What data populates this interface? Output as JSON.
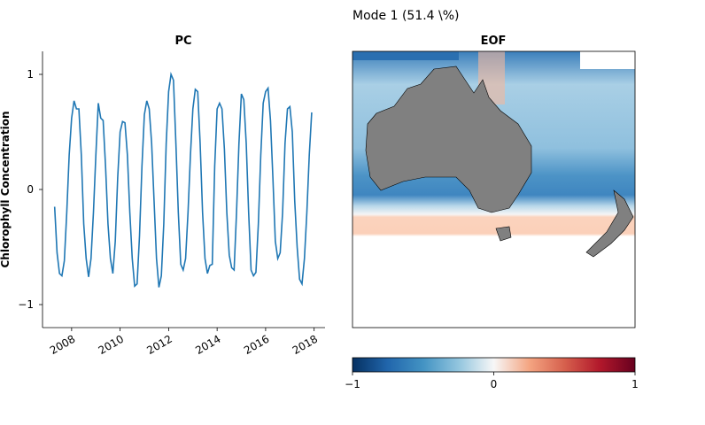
{
  "title": "Mode 1 (51.4 \\%)",
  "chart_data": [
    {
      "type": "line",
      "title": "PC",
      "y_label": "Chlorophyll Concentration",
      "x": [
        2007.3,
        2007.4,
        2007.5,
        2007.6,
        2007.7,
        2007.8,
        2007.9,
        2008.0,
        2008.1,
        2008.2,
        2008.3,
        2008.4,
        2008.5,
        2008.6,
        2008.7,
        2008.8,
        2008.9,
        2009.0,
        2009.1,
        2009.2,
        2009.3,
        2009.4,
        2009.5,
        2009.6,
        2009.7,
        2009.8,
        2009.9,
        2010.0,
        2010.1,
        2010.2,
        2010.3,
        2010.4,
        2010.5,
        2010.6,
        2010.7,
        2010.8,
        2010.9,
        2011.0,
        2011.1,
        2011.2,
        2011.3,
        2011.4,
        2011.5,
        2011.6,
        2011.7,
        2011.8,
        2011.9,
        2012.0,
        2012.1,
        2012.2,
        2012.3,
        2012.4,
        2012.5,
        2012.6,
        2012.7,
        2012.8,
        2012.9,
        2013.0,
        2013.1,
        2013.2,
        2013.3,
        2013.4,
        2013.5,
        2013.6,
        2013.7,
        2013.8,
        2013.9,
        2014.0,
        2014.1,
        2014.2,
        2014.3,
        2014.4,
        2014.5,
        2014.6,
        2014.7,
        2014.8,
        2014.9,
        2015.0,
        2015.1,
        2015.2,
        2015.3,
        2015.4,
        2015.5,
        2015.6,
        2015.7,
        2015.8,
        2015.9,
        2016.0,
        2016.1,
        2016.2,
        2016.3,
        2016.4,
        2016.5,
        2016.6,
        2016.7,
        2016.8,
        2016.9,
        2017.0,
        2017.1,
        2017.2,
        2017.3,
        2017.4,
        2017.5,
        2017.6,
        2017.7,
        2017.8,
        2017.9
      ],
      "series": [
        {
          "color": "#1f77b4",
          "values": [
            -0.15,
            -0.55,
            -0.73,
            -0.75,
            -0.62,
            -0.2,
            0.3,
            0.62,
            0.77,
            0.7,
            0.7,
            0.3,
            -0.3,
            -0.6,
            -0.76,
            -0.6,
            -0.2,
            0.3,
            0.75,
            0.62,
            0.6,
            0.2,
            -0.3,
            -0.6,
            -0.73,
            -0.45,
            0.1,
            0.5,
            0.59,
            0.58,
            0.3,
            -0.2,
            -0.6,
            -0.84,
            -0.82,
            -0.4,
            0.2,
            0.65,
            0.77,
            0.7,
            0.4,
            -0.1,
            -0.6,
            -0.85,
            -0.75,
            -0.3,
            0.4,
            0.85,
            1.0,
            0.95,
            0.4,
            -0.2,
            -0.65,
            -0.7,
            -0.6,
            -0.2,
            0.3,
            0.7,
            0.87,
            0.85,
            0.4,
            -0.2,
            -0.6,
            -0.73,
            -0.66,
            -0.65,
            0.2,
            0.7,
            0.75,
            0.7,
            0.35,
            -0.2,
            -0.57,
            -0.68,
            -0.7,
            -0.2,
            0.4,
            0.83,
            0.78,
            0.4,
            -0.2,
            -0.7,
            -0.75,
            -0.72,
            -0.3,
            0.3,
            0.75,
            0.85,
            0.88,
            0.6,
            0.1,
            -0.45,
            -0.6,
            -0.55,
            -0.2,
            0.4,
            0.7,
            0.72,
            0.5,
            -0.1,
            -0.5,
            -0.78,
            -0.82,
            -0.6,
            -0.2,
            0.3,
            0.67
          ]
        }
      ],
      "xlim": [
        2006.8,
        2018.45
      ],
      "xticks": [
        2008,
        2010,
        2012,
        2014,
        2016,
        2018
      ],
      "ylim": [
        -1.2,
        1.2
      ],
      "yticks": [
        {
          "value": -1,
          "label": "−1"
        },
        0,
        1
      ]
    },
    {
      "type": "map",
      "title": "EOF",
      "colormap": "RdBu_r",
      "clim": [
        -1,
        1
      ],
      "cticks": [
        {
          "value": -1,
          "label": "−1"
        },
        0,
        1
      ]
    }
  ]
}
